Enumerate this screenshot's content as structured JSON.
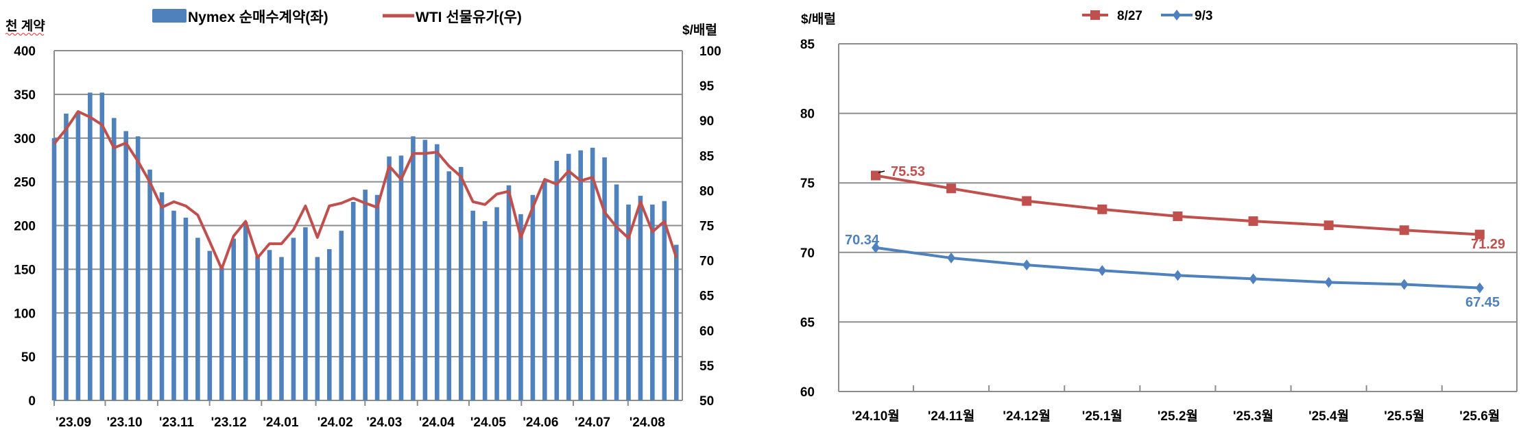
{
  "chart_data": [
    {
      "type": "bar+line",
      "ylabel_left": "천 계약",
      "ylabel_right": "$/배럴",
      "ylim_left": [
        0,
        400
      ],
      "ylim_right": [
        50,
        100
      ],
      "yticks_left": [
        "0",
        "50",
        "100",
        "150",
        "200",
        "250",
        "300",
        "350",
        "400"
      ],
      "yticks_right": [
        "50",
        "55",
        "60",
        "65",
        "70",
        "75",
        "80",
        "85",
        "90",
        "95",
        "100"
      ],
      "grid": true,
      "legend_position": "top",
      "month_labels": [
        "'23.09",
        "'23.10",
        "'23.11",
        "'23.12",
        "'24.01",
        "'24.02",
        "'24.03",
        "'24.04",
        "'24.05",
        "'24.06",
        "'24.07",
        "'24.08"
      ],
      "series": [
        {
          "name": "Nymex 순매수계약(좌)",
          "type": "bar",
          "axis": "left",
          "color": "#4f81bd",
          "values": [
            300,
            328,
            330,
            352,
            352,
            323,
            308,
            302,
            264,
            238,
            217,
            209,
            186,
            171,
            152,
            185,
            204,
            165,
            172,
            164,
            186,
            198,
            164,
            173,
            194,
            227,
            241,
            235,
            279,
            280,
            302,
            298,
            293,
            262,
            267,
            217,
            205,
            221,
            246,
            213,
            235,
            250,
            274,
            282,
            286,
            289,
            278,
            247,
            224,
            234,
            224,
            228,
            178
          ]
        },
        {
          "name": "WTI 선물유가(우)",
          "type": "line",
          "axis": "right",
          "color": "#c0504d",
          "values": [
            86.7,
            88.8,
            91.3,
            90.5,
            89.4,
            86.1,
            86.8,
            84.2,
            81.2,
            77.6,
            78.4,
            77.8,
            76.5,
            72.7,
            68.8,
            73.5,
            75.6,
            70.4,
            72.4,
            72.4,
            74.4,
            77.8,
            73.3,
            77.8,
            78.2,
            78.9,
            78.2,
            77.6,
            83.5,
            81.6,
            85.3,
            85.3,
            85.5,
            83.5,
            82.0,
            78.4,
            78.0,
            79.5,
            79.9,
            73.3,
            77.6,
            81.6,
            80.9,
            82.8,
            81.4,
            81.9,
            76.9,
            74.8,
            73.2,
            78.4,
            74.1,
            75.6,
            70.4
          ]
        }
      ]
    },
    {
      "type": "line",
      "ylabel": "$/배럴",
      "ylim": [
        60,
        85
      ],
      "yticks": [
        "60",
        "65",
        "70",
        "75",
        "80",
        "85"
      ],
      "grid": true,
      "legend_position": "top",
      "categories": [
        "'24.10월",
        "'24.11월",
        "'24.12월",
        "'25.1월",
        "'25.2월",
        "'25.3월",
        "'25.4월",
        "'25.5월",
        "'25.6월"
      ],
      "series": [
        {
          "name": "8/27",
          "color": "#c0504d",
          "marker": "square",
          "values": [
            75.53,
            74.6,
            73.7,
            73.1,
            72.6,
            72.25,
            71.95,
            71.6,
            71.29
          ],
          "labels": {
            "first": "75.53",
            "last": "71.29"
          }
        },
        {
          "name": "9/3",
          "color": "#4f81bd",
          "marker": "diamond",
          "values": [
            70.34,
            69.6,
            69.1,
            68.7,
            68.35,
            68.1,
            67.85,
            67.7,
            67.45
          ],
          "labels": {
            "first": "70.34",
            "last": "67.45"
          }
        }
      ]
    }
  ]
}
